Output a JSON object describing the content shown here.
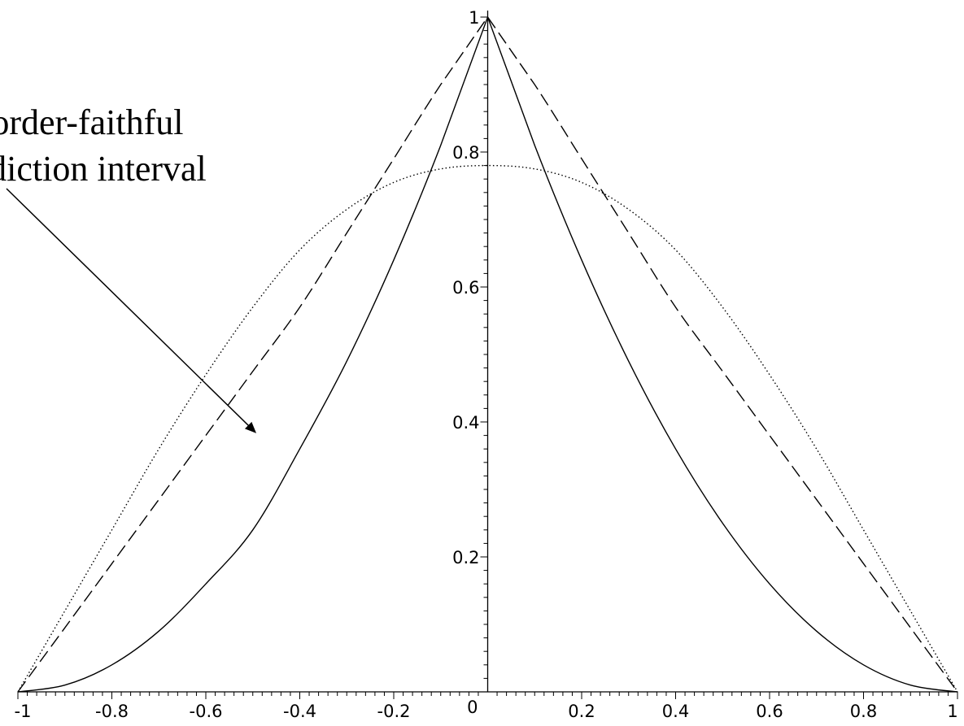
{
  "chart_data": {
    "type": "line",
    "title": "",
    "xlabel": "",
    "ylabel": "",
    "xlim": [
      -1,
      1
    ],
    "ylim": [
      0,
      1
    ],
    "grid": false,
    "x_ticks": [
      {
        "value": -1,
        "label": "-1"
      },
      {
        "value": -0.8,
        "label": "-0.8"
      },
      {
        "value": -0.6,
        "label": "-0.6"
      },
      {
        "value": -0.4,
        "label": "-0.4"
      },
      {
        "value": -0.2,
        "label": "-0.2"
      },
      {
        "value": 0.2,
        "label": "0.2"
      },
      {
        "value": 0.4,
        "label": "0.4"
      },
      {
        "value": 0.6,
        "label": "0.6"
      },
      {
        "value": 0.8,
        "label": "0.8"
      },
      {
        "value": 1,
        "label": "1"
      }
    ],
    "y_ticks": [
      {
        "value": 0.2,
        "label": "0.2"
      },
      {
        "value": 0.4,
        "label": "0.4"
      },
      {
        "value": 0.6,
        "label": "0.6"
      },
      {
        "value": 0.8,
        "label": "0.8"
      },
      {
        "value": 1,
        "label": "1"
      }
    ],
    "origin_label": "0",
    "series": [
      {
        "style": "dashed",
        "color": "#000000",
        "x": [
          -1,
          -0.9,
          -0.8,
          -0.7,
          -0.6,
          -0.5,
          -0.4,
          -0.3,
          -0.2,
          -0.1,
          0,
          0.1,
          0.2,
          0.3,
          0.4,
          0.5,
          0.6,
          0.7,
          0.8,
          0.9,
          1
        ],
        "y": [
          0,
          0.095,
          0.19,
          0.285,
          0.38,
          0.475,
          0.57,
          0.68,
          0.79,
          0.9,
          1,
          0.9,
          0.79,
          0.68,
          0.57,
          0.475,
          0.38,
          0.285,
          0.19,
          0.095,
          0
        ]
      },
      {
        "style": "dotted",
        "color": "#000000",
        "x": [
          -1,
          -0.9,
          -0.8,
          -0.7,
          -0.6,
          -0.5,
          -0.4,
          -0.3,
          -0.2,
          -0.1,
          0,
          0.1,
          0.2,
          0.3,
          0.4,
          0.5,
          0.6,
          0.7,
          0.8,
          0.9,
          1
        ],
        "y": [
          0,
          0.12,
          0.24,
          0.36,
          0.47,
          0.57,
          0.655,
          0.715,
          0.755,
          0.775,
          0.78,
          0.775,
          0.755,
          0.715,
          0.655,
          0.57,
          0.47,
          0.36,
          0.24,
          0.12,
          0
        ]
      },
      {
        "style": "solid",
        "color": "#000000",
        "x": [
          -1,
          -0.9,
          -0.8,
          -0.7,
          -0.6,
          -0.5,
          -0.4,
          -0.3,
          -0.2,
          -0.1,
          0,
          0.1,
          0.2,
          0.3,
          0.4,
          0.5,
          0.6,
          0.7,
          0.8,
          0.9,
          1
        ],
        "y": [
          0,
          0.01,
          0.04,
          0.09,
          0.16,
          0.24,
          0.36,
          0.49,
          0.64,
          0.81,
          1,
          0.81,
          0.64,
          0.49,
          0.36,
          0.25,
          0.16,
          0.09,
          0.04,
          0.01,
          0
        ]
      }
    ],
    "annotation": {
      "lines": [
        "Border-faithful",
        "prediction interval"
      ]
    }
  }
}
